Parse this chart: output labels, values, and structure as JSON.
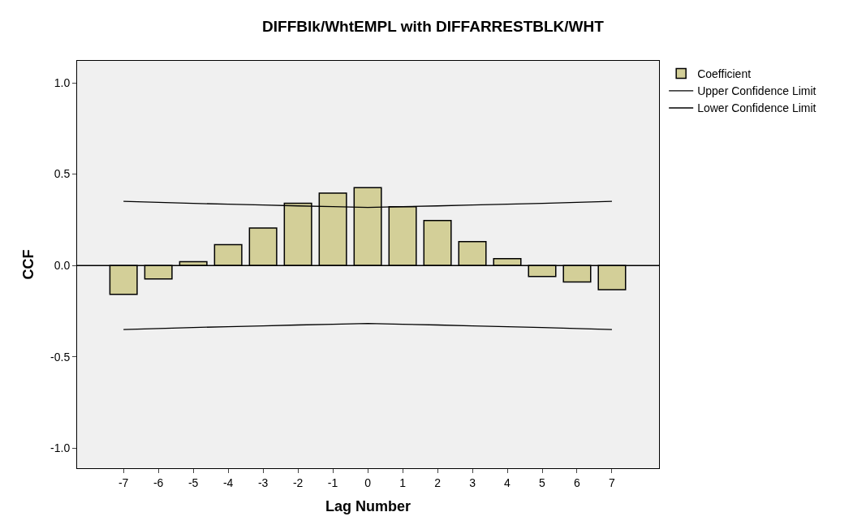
{
  "chart_data": {
    "type": "bar",
    "title": "DIFFBlk/WhtEMPL with DIFFARRESTBLK/WHT",
    "xlabel": "Lag Number",
    "ylabel": "CCF",
    "x": [
      -7,
      -6,
      -5,
      -4,
      -3,
      -2,
      -1,
      0,
      1,
      2,
      3,
      4,
      5,
      6,
      7
    ],
    "series": [
      {
        "name": "Coefficient",
        "color": "#d3cf98",
        "values": [
          -0.158,
          -0.074,
          0.02,
          0.114,
          0.205,
          0.34,
          0.396,
          0.426,
          0.321,
          0.246,
          0.13,
          0.037,
          -0.06,
          -0.091,
          -0.133
        ]
      },
      {
        "name": "Upper Confidence Limit",
        "type": "line",
        "color": "#000000",
        "values": [
          0.351,
          0.345,
          0.34,
          0.335,
          0.331,
          0.326,
          0.322,
          0.318,
          0.322,
          0.326,
          0.331,
          0.335,
          0.34,
          0.345,
          0.351
        ]
      },
      {
        "name": "Lower Confidence Limit",
        "type": "line",
        "color": "#000000",
        "values": [
          -0.351,
          -0.345,
          -0.34,
          -0.335,
          -0.331,
          -0.326,
          -0.322,
          -0.318,
          -0.322,
          -0.326,
          -0.331,
          -0.335,
          -0.34,
          -0.345,
          -0.351
        ]
      }
    ],
    "xlim": [
      -8.33,
      8.35
    ],
    "ylim": [
      -1.11,
      1.12
    ],
    "xticks": [
      -7,
      -6,
      -5,
      -4,
      -3,
      -2,
      -1,
      0,
      1,
      2,
      3,
      4,
      5,
      6,
      7
    ],
    "yticks": [
      {
        "value": -1.0,
        "label": "-1.0"
      },
      {
        "value": -0.5,
        "label": "-0.5"
      },
      {
        "value": 0.0,
        "label": "0.0"
      },
      {
        "value": 0.5,
        "label": "0.5"
      },
      {
        "value": 1.0,
        "label": "1.0"
      }
    ],
    "ref_lines": [
      {
        "axis": "y",
        "value": 0,
        "color": "#000000"
      }
    ],
    "legend": "top right",
    "grid": false,
    "marker": "none",
    "line_style": "solid"
  }
}
